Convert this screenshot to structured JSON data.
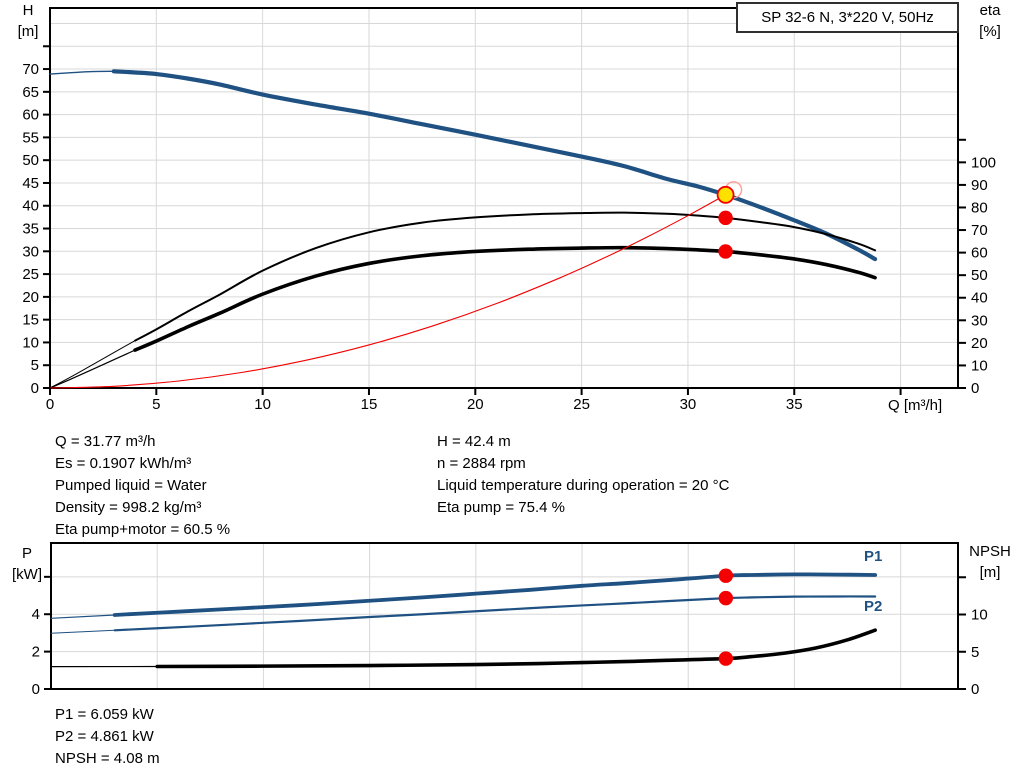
{
  "title_box": "SP 32-6 N, 3*220 V, 50Hz",
  "labels": {
    "h": [
      "H",
      "[m]"
    ],
    "eta": [
      "eta",
      "[%]"
    ],
    "q": "Q [m³/h]",
    "p": [
      "P",
      "[kW]"
    ],
    "npsh": [
      "NPSH",
      "[m]"
    ],
    "p1": "P1",
    "p2": "P2"
  },
  "colors": {
    "curve_blue": "#1f5182",
    "curve_black": "#000000",
    "system_red": "#f40000",
    "marker_red": "#f40000",
    "duty_yellow": "#ffe100",
    "ghost_ring": "#ff9c94",
    "grid": "#d8d8d8",
    "axis": "#000000",
    "label_blue": "#1f5182"
  },
  "info": {
    "left": [
      "Q = 31.77 m³/h",
      "Es = 0.1907 kWh/m³",
      "Pumped liquid = Water",
      "Density = 998.2 kg/m³",
      "Eta pump+motor = 60.5 %"
    ],
    "right": [
      "H = 42.4 m",
      "n = 2884 rpm",
      "Liquid temperature during operation = 20 °C",
      "Eta pump = 75.4 %"
    ],
    "bottom": [
      "P1 = 6.059 kW",
      "P2 = 4.861 kW",
      "NPSH = 4.08 m"
    ]
  },
  "chart_data": [
    {
      "name": "head-and-efficiency-chart",
      "type": "line",
      "title": "SP 32-6 N, 3*220 V, 50Hz",
      "xlabel": "Q [m³/h]",
      "ylabel_left": "H [m]",
      "ylabel_right": "eta [%]",
      "x_range": [
        0,
        42.7
      ],
      "y_left_range": [
        0,
        83.4
      ],
      "y_right_range": [
        0,
        168.4
      ],
      "grid_v": [
        5,
        10,
        15,
        20,
        25,
        30,
        35,
        40
      ],
      "grid_h_axis": "left",
      "grid_h": [
        5,
        10,
        15,
        20,
        25,
        30,
        35,
        40,
        45,
        50,
        55,
        60,
        65,
        70,
        75,
        80
      ],
      "x_ticks": [
        0,
        5,
        10,
        15,
        20,
        25,
        30,
        35,
        40
      ],
      "x_tick_labels": [
        "0",
        "5",
        "10",
        "15",
        "20",
        "25",
        "30",
        "35",
        ""
      ],
      "left_ticks": [
        0,
        5,
        10,
        15,
        20,
        25,
        30,
        35,
        40,
        45,
        50,
        55,
        60,
        65,
        70,
        75
      ],
      "left_tick_labels": [
        "0",
        "5",
        "10",
        "15",
        "20",
        "25",
        "30",
        "35",
        "40",
        "45",
        "50",
        "55",
        "60",
        "65",
        "70",
        ""
      ],
      "right_ticks": [
        0,
        10,
        20,
        30,
        40,
        50,
        60,
        70,
        80,
        90,
        100,
        110
      ],
      "right_tick_labels": [
        "0",
        "10",
        "20",
        "30",
        "40",
        "50",
        "60",
        "70",
        "80",
        "90",
        "100",
        ""
      ],
      "series": [
        {
          "name": "head-curve",
          "legend": "H",
          "axis": "left",
          "color": "#1f5182",
          "width": 4.2,
          "thin_width": 1.4,
          "thin_until": 3,
          "points": [
            [
              0,
              68.9
            ],
            [
              1,
              69.2
            ],
            [
              2,
              69.45
            ],
            [
              3,
              69.5
            ],
            [
              4,
              69.25
            ],
            [
              5,
              68.9
            ],
            [
              6.5,
              67.9
            ],
            [
              8,
              66.6
            ],
            [
              10,
              64.4
            ],
            [
              12.5,
              62.2
            ],
            [
              15,
              60.2
            ],
            [
              17.5,
              57.9
            ],
            [
              20,
              55.6
            ],
            [
              22.5,
              53.2
            ],
            [
              25,
              50.8
            ],
            [
              27,
              48.7
            ],
            [
              29,
              45.9
            ],
            [
              30.5,
              44.2
            ],
            [
              31.77,
              42.4
            ],
            [
              33,
              40.4
            ],
            [
              35,
              36.8
            ],
            [
              36.5,
              33.9
            ],
            [
              38,
              30.4
            ],
            [
              38.8,
              28.3
            ]
          ]
        },
        {
          "name": "eta-pump-curve",
          "legend": "eta pump",
          "axis": "right",
          "color": "#000000",
          "width": 2.0,
          "thin_width": 1.0,
          "thin_until": 4,
          "points": [
            [
              0,
              0
            ],
            [
              1,
              5
            ],
            [
              2.5,
              13
            ],
            [
              4,
              21
            ],
            [
              5,
              26
            ],
            [
              6.5,
              34
            ],
            [
              8,
              41.5
            ],
            [
              10,
              52
            ],
            [
              12.5,
              62
            ],
            [
              15,
              69
            ],
            [
              17.5,
              73.3
            ],
            [
              20,
              75.6
            ],
            [
              22.5,
              76.9
            ],
            [
              25,
              77.5
            ],
            [
              27,
              77.7
            ],
            [
              29,
              77.2
            ],
            [
              30.5,
              76.4
            ],
            [
              31.77,
              75.4
            ],
            [
              33.5,
              73.4
            ],
            [
              35,
              71.3
            ],
            [
              36.5,
              68.2
            ],
            [
              38,
              64
            ],
            [
              38.8,
              61
            ]
          ]
        },
        {
          "name": "eta-pump-motor-curve",
          "legend": "eta pump+motor",
          "axis": "right",
          "color": "#000000",
          "width": 3.6,
          "thin_width": 1.2,
          "thin_until": 3,
          "points": [
            [
              0,
              0
            ],
            [
              1,
              4
            ],
            [
              2.5,
              10.4
            ],
            [
              4,
              16.8
            ],
            [
              5,
              20.8
            ],
            [
              6.5,
              27.2
            ],
            [
              8,
              33.2
            ],
            [
              10,
              41.6
            ],
            [
              12.5,
              49.6
            ],
            [
              15,
              55.2
            ],
            [
              17.5,
              58.6
            ],
            [
              20,
              60.5
            ],
            [
              22.5,
              61.5
            ],
            [
              25,
              62
            ],
            [
              27,
              62.2
            ],
            [
              29,
              61.8
            ],
            [
              30.5,
              61.2
            ],
            [
              31.77,
              60.5
            ],
            [
              33.5,
              58.9
            ],
            [
              35,
              57.2
            ],
            [
              36.5,
              54.7
            ],
            [
              38,
              51.3
            ],
            [
              38.8,
              48.9
            ]
          ]
        },
        {
          "name": "system-curve",
          "legend": "duty line",
          "axis": "left",
          "color": "#f40000",
          "width": 1.1,
          "thin_width": 1.1,
          "thin_until": null,
          "points": [
            [
              0,
              0
            ],
            [
              3,
              0.38
            ],
            [
              6,
              1.51
            ],
            [
              9,
              3.4
            ],
            [
              12,
              6.05
            ],
            [
              15,
              9.45
            ],
            [
              18,
              13.62
            ],
            [
              21,
              18.54
            ],
            [
              24,
              24.21
            ],
            [
              26,
              28.41
            ],
            [
              28,
              32.95
            ],
            [
              30,
              37.82
            ],
            [
              31.77,
              42.4
            ]
          ]
        }
      ],
      "markers": [
        {
          "kind": "duty",
          "q": 31.77,
          "v": 42.4,
          "axis": "left"
        },
        {
          "kind": "dot",
          "q": 31.77,
          "v": 75.4,
          "axis": "right"
        },
        {
          "kind": "dot",
          "q": 31.77,
          "v": 60.5,
          "axis": "right"
        }
      ]
    },
    {
      "name": "power-and-npsh-chart",
      "type": "line",
      "xlabel": "Q [m³/h]",
      "ylabel_left": "P [kW]",
      "ylabel_right": "NPSH [m]",
      "x_range": [
        0,
        42.7
      ],
      "y_left_range": [
        0,
        7.81
      ],
      "y_right_range": [
        0,
        19.6
      ],
      "grid_v": [
        5,
        10,
        15,
        20,
        25,
        30,
        35,
        40
      ],
      "grid_h_axis": "left",
      "grid_h": [
        2,
        4,
        6
      ],
      "x_ticks": [],
      "x_tick_labels": [],
      "left_ticks": [
        0,
        2,
        4,
        6
      ],
      "left_tick_labels": [
        "0",
        "2",
        "4",
        ""
      ],
      "right_ticks": [
        0,
        5,
        10,
        15
      ],
      "right_tick_labels": [
        "0",
        "5",
        "10",
        ""
      ],
      "series": [
        {
          "name": "p1-curve",
          "legend": "P1",
          "axis": "left",
          "color": "#1f5182",
          "width": 3.8,
          "thin_width": 1.2,
          "thin_until": 3,
          "points": [
            [
              0,
              3.78
            ],
            [
              3,
              3.96
            ],
            [
              5,
              4.08
            ],
            [
              8,
              4.26
            ],
            [
              10,
              4.38
            ],
            [
              12.5,
              4.54
            ],
            [
              15,
              4.72
            ],
            [
              17.5,
              4.9
            ],
            [
              20,
              5.1
            ],
            [
              22.5,
              5.3
            ],
            [
              25,
              5.52
            ],
            [
              27,
              5.66
            ],
            [
              29,
              5.82
            ],
            [
              31.77,
              6.06
            ],
            [
              33,
              6.1
            ],
            [
              35,
              6.13
            ],
            [
              37,
              6.12
            ],
            [
              38.8,
              6.1
            ]
          ]
        },
        {
          "name": "p2-curve",
          "legend": "P2",
          "axis": "left",
          "color": "#1f5182",
          "width": 2.2,
          "thin_width": 1.0,
          "thin_until": 3,
          "points": [
            [
              0,
              2.98
            ],
            [
              3,
              3.14
            ],
            [
              5,
              3.25
            ],
            [
              8,
              3.42
            ],
            [
              10,
              3.54
            ],
            [
              12.5,
              3.69
            ],
            [
              15,
              3.85
            ],
            [
              17.5,
              4.0
            ],
            [
              20,
              4.16
            ],
            [
              22.5,
              4.32
            ],
            [
              25,
              4.47
            ],
            [
              27,
              4.58
            ],
            [
              29,
              4.7
            ],
            [
              31.77,
              4.86
            ],
            [
              33,
              4.9
            ],
            [
              35,
              4.94
            ],
            [
              37,
              4.95
            ],
            [
              38.8,
              4.95
            ]
          ]
        },
        {
          "name": "npsh-curve",
          "legend": "NPSH",
          "axis": "right",
          "color": "#000000",
          "width": 3.6,
          "thin_width": 1.2,
          "thin_until": 4,
          "points": [
            [
              0,
              3.0
            ],
            [
              5,
              3.02
            ],
            [
              10,
              3.07
            ],
            [
              15,
              3.15
            ],
            [
              20,
              3.28
            ],
            [
              23,
              3.42
            ],
            [
              25,
              3.55
            ],
            [
              27,
              3.68
            ],
            [
              29,
              3.85
            ],
            [
              31.77,
              4.08
            ],
            [
              33,
              4.35
            ],
            [
              34.5,
              4.8
            ],
            [
              36,
              5.5
            ],
            [
              37.5,
              6.6
            ],
            [
              38.8,
              7.9
            ]
          ]
        }
      ],
      "markers": [
        {
          "kind": "dot",
          "q": 31.77,
          "v": 6.059,
          "axis": "left"
        },
        {
          "kind": "dot",
          "q": 31.77,
          "v": 4.861,
          "axis": "left"
        },
        {
          "kind": "dot",
          "q": 31.77,
          "v": 4.08,
          "axis": "right"
        }
      ]
    }
  ]
}
